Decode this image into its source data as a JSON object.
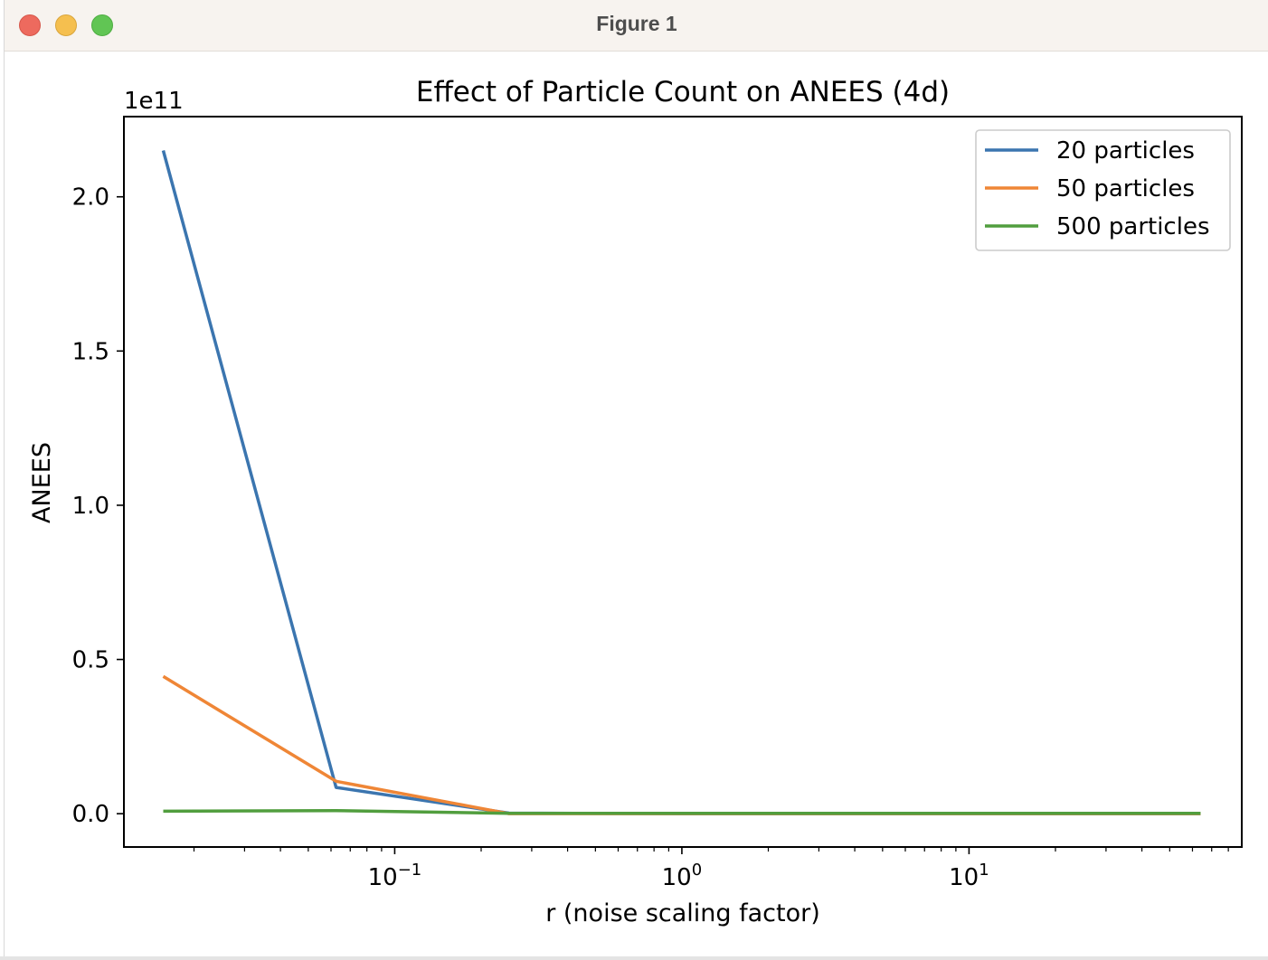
{
  "window": {
    "title": "Figure 1"
  },
  "chart_data": {
    "type": "line",
    "title": "Effect of Particle Count on ANEES (4d)",
    "xlabel": "r (noise scaling factor)",
    "ylabel": "ANEES",
    "x_scale": "log",
    "y_offset_text": "1e11",
    "xlim": [
      0.0114,
      89.1
    ],
    "ylim": [
      -0.108,
      2.26
    ],
    "y_ticks": [
      0.0,
      0.5,
      1.0,
      1.5,
      2.0
    ],
    "y_tick_labels": [
      "0.0",
      "0.5",
      "1.0",
      "1.5",
      "2.0"
    ],
    "x_ticks": [
      0.1,
      1,
      10
    ],
    "x_tick_labels": [
      {
        "base": "10",
        "exp": "−1"
      },
      {
        "base": "10",
        "exp": "0"
      },
      {
        "base": "10",
        "exp": "1"
      }
    ],
    "x": [
      0.015625,
      0.0625,
      0.25,
      1,
      4,
      16,
      64
    ],
    "series": [
      {
        "name": "20 particles",
        "color": "#3b75af",
        "values": [
          2.15,
          0.085,
          0.002,
          0.0,
          0.0,
          0.0,
          0.0
        ]
      },
      {
        "name": "50 particles",
        "color": "#ef8636",
        "values": [
          0.445,
          0.105,
          0.0,
          0.0,
          0.0,
          0.0,
          0.0
        ]
      },
      {
        "name": "500 particles",
        "color": "#519e3e",
        "values": [
          0.008,
          0.01,
          0.001,
          0.001,
          0.001,
          0.001,
          0.001
        ]
      }
    ],
    "legend": "top-right",
    "grid": false
  }
}
